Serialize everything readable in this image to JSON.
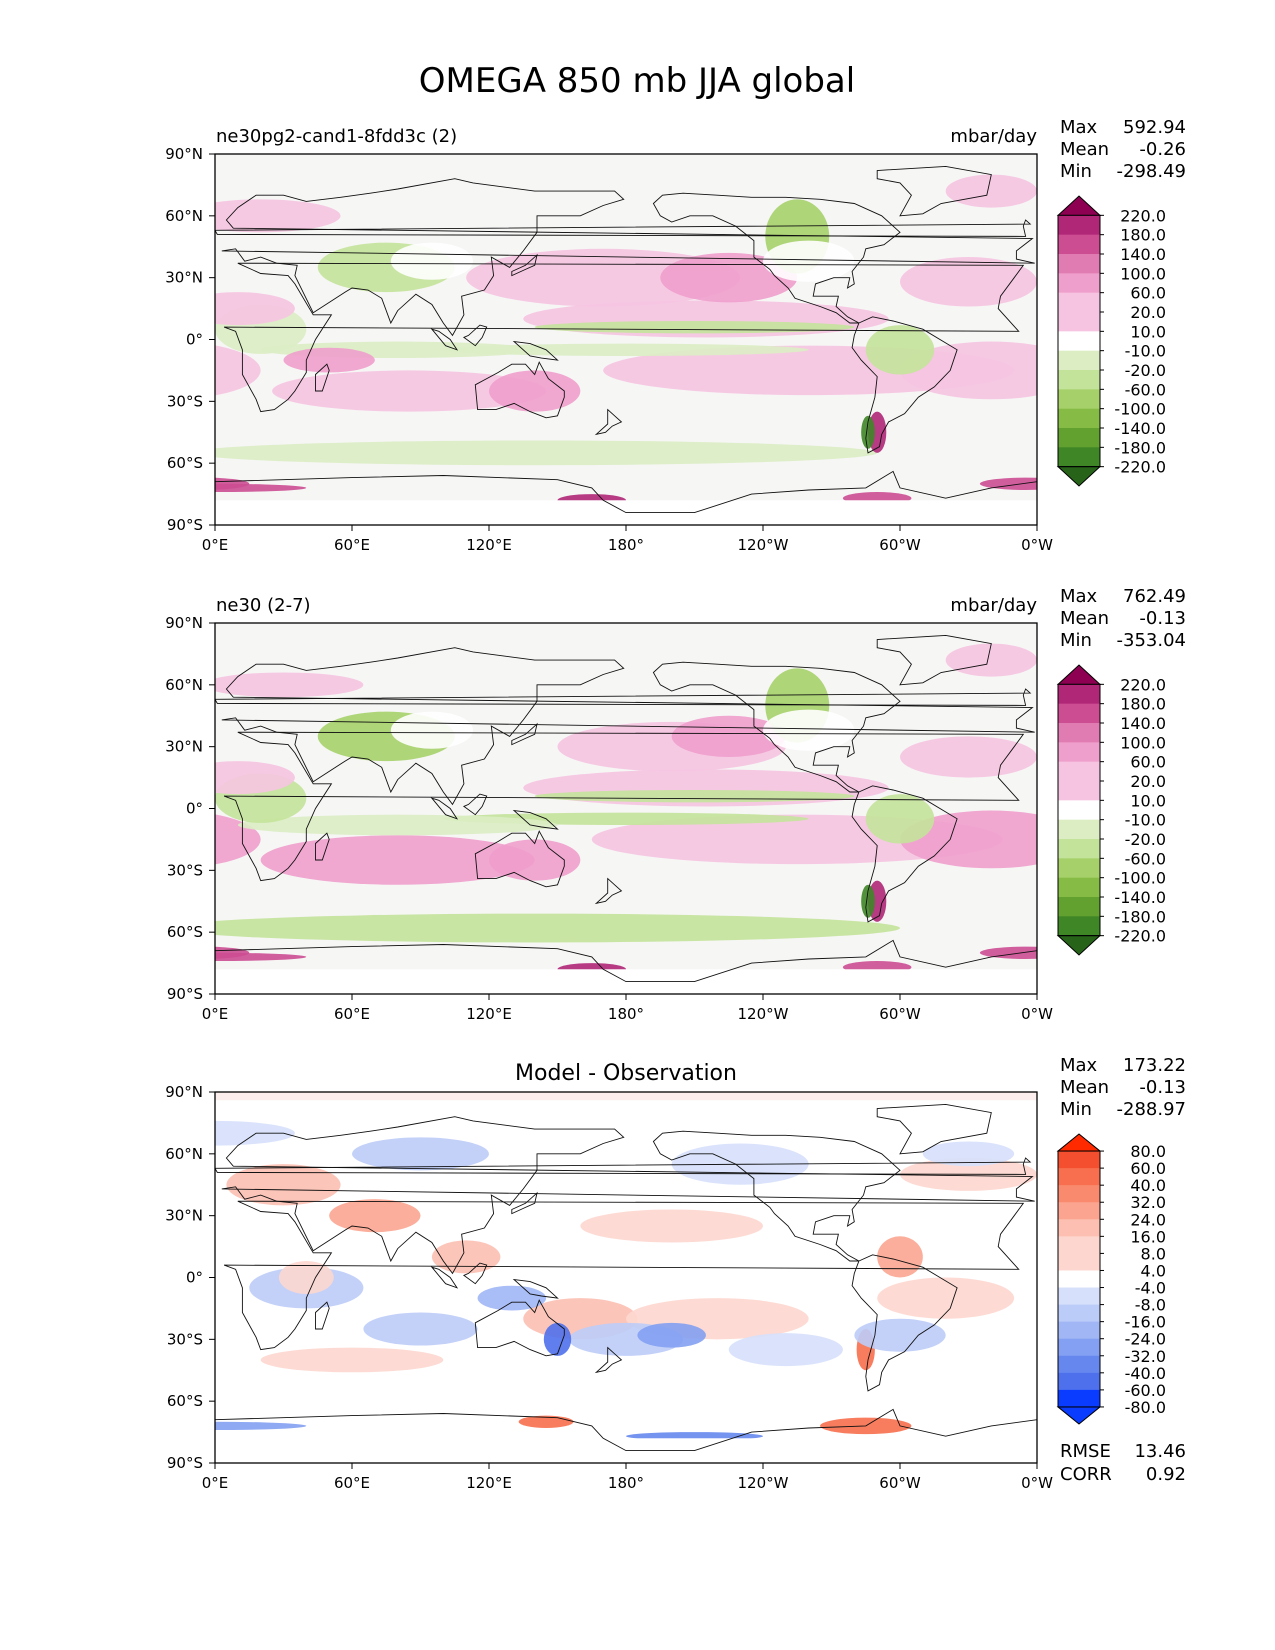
{
  "title": "OMEGA 850 mb JJA global",
  "lat_ticks": [
    "90°N",
    "60°N",
    "30°N",
    "0°",
    "30°S",
    "60°S",
    "90°S"
  ],
  "lon_ticks": [
    "0°E",
    "60°E",
    "120°E",
    "180°",
    "120°W",
    "60°W",
    "0°W"
  ],
  "colors": {
    "pink_ramp": [
      "#f6c4e1",
      "#ef9fcc",
      "#e07cb2",
      "#cc4d92",
      "#b02777",
      "#8e0152"
    ],
    "green_ramp": [
      "#dcedc4",
      "#c4e39a",
      "#a6d16a",
      "#86bc45",
      "#62a02f",
      "#3f8627",
      "#276419"
    ],
    "red_ramp": [
      "#fdd7cf",
      "#fcbfb1",
      "#fba590",
      "#f98a6e",
      "#f76f4e",
      "#f4502f",
      "#ff2a00"
    ],
    "blue_ramp": [
      "#d6e0fb",
      "#bcccf8",
      "#a0b6f5",
      "#83a0f2",
      "#6688ee",
      "#4f70ec",
      "#0a3cff"
    ],
    "neutral": "#f6f6f5",
    "polar_white": "#ffffff"
  },
  "panels": [
    {
      "name": "model",
      "left_title": "ne30pg2-cand1-8fdd3c (2)",
      "center_title": "",
      "units": "mbar/day",
      "stats": {
        "max_label": "Max",
        "max_value": "592.94",
        "mean_label": "Mean",
        "mean_value": "-0.26",
        "min_label": "Min",
        "min_value": "-298.49"
      },
      "colorbar_levels": [
        "220.0",
        "180.0",
        "140.0",
        "100.0",
        "60.0",
        "20.0",
        "10.0",
        "-10.0",
        "-20.0",
        "-60.0",
        "-100.0",
        "-140.0",
        "-180.0",
        "-220.0"
      ],
      "footer": null
    },
    {
      "name": "observation",
      "left_title": "ne30 (2-7)",
      "center_title": "",
      "units": "mbar/day",
      "stats": {
        "max_label": "Max",
        "max_value": "762.49",
        "mean_label": "Mean",
        "mean_value": "-0.13",
        "min_label": "Min",
        "min_value": "-353.04"
      },
      "colorbar_levels": [
        "220.0",
        "180.0",
        "140.0",
        "100.0",
        "60.0",
        "20.0",
        "10.0",
        "-10.0",
        "-20.0",
        "-60.0",
        "-100.0",
        "-140.0",
        "-180.0",
        "-220.0"
      ],
      "footer": null
    },
    {
      "name": "difference",
      "left_title": "",
      "center_title": "Model - Observation",
      "units": "",
      "stats": {
        "max_label": "Max",
        "max_value": "173.22",
        "mean_label": "Mean",
        "mean_value": "-0.13",
        "min_label": "Min",
        "min_value": "-288.97"
      },
      "colorbar_levels": [
        "80.0",
        "60.0",
        "40.0",
        "32.0",
        "24.0",
        "16.0",
        "8.0",
        "4.0",
        "-4.0",
        "-8.0",
        "-16.0",
        "-24.0",
        "-32.0",
        "-40.0",
        "-60.0",
        "-80.0"
      ],
      "footer": {
        "rmse_label": "RMSE",
        "rmse_value": "13.46",
        "corr_label": "CORR",
        "corr_value": "0.92"
      }
    }
  ]
}
